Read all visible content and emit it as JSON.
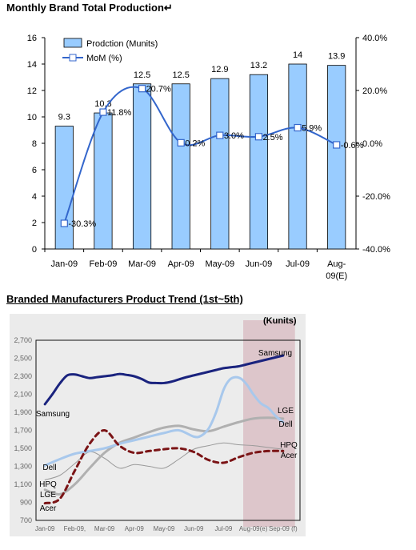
{
  "chart_data": [
    {
      "type": "bar",
      "title": "Monthly Brand Total Production↵",
      "categories": [
        "Jan-09",
        "Feb-09",
        "Mar-09",
        "Apr-09",
        "May-09",
        "Jun-09",
        "Jul-09",
        "Aug-09(E)"
      ],
      "category_lines": [
        [
          "Jan-09"
        ],
        [
          "Feb-09"
        ],
        [
          "Mar-09"
        ],
        [
          "Apr-09"
        ],
        [
          "May-09"
        ],
        [
          "Jun-09"
        ],
        [
          "Jul-09"
        ],
        [
          "Aug-",
          "09(E)"
        ]
      ],
      "series": [
        {
          "name": "Prodction (Munits)",
          "type": "bar",
          "axis": "left",
          "values": [
            9.3,
            10.3,
            12.5,
            12.5,
            12.9,
            13.2,
            14,
            13.9
          ],
          "labels": [
            "9.3",
            "10.3",
            "12.5",
            "12.5",
            "12.9",
            "13.2",
            "14",
            "13.9"
          ],
          "color": "#99ccff"
        },
        {
          "name": "MoM (%)",
          "type": "line",
          "axis": "right",
          "values": [
            -30.3,
            11.8,
            20.7,
            0.2,
            3.0,
            2.5,
            5.9,
            -0.6
          ],
          "labels": [
            "-30.3%",
            "11.8%",
            "20.7%",
            "0.2%",
            "3.0%",
            "2.5%",
            "5.9%",
            "-0.6%"
          ],
          "color": "#3366cc"
        }
      ],
      "y_left": {
        "min": 0,
        "max": 16,
        "ticks": [
          "0",
          "2",
          "4",
          "6",
          "8",
          "10",
          "12",
          "14",
          "16"
        ]
      },
      "y_right": {
        "min": -40,
        "max": 40,
        "ticks": [
          "-40.0%",
          "-20.0%",
          "0.0%",
          "20.0%",
          "40.0%"
        ]
      },
      "legend": "top-left",
      "grid": false
    },
    {
      "type": "line",
      "title": "Branded Manufacturers Product Trend (1st~5th)",
      "unit_label": "(Kunits)",
      "categories": [
        "Jan-09",
        "Feb-09,",
        "Mar-09",
        "Apr-09",
        "May-09",
        "Jun-09",
        "Jul-09",
        "Aug-09(e)",
        "Sep-09 (f)"
      ],
      "ylim": [
        700,
        2700
      ],
      "y_ticks": [
        "700",
        "900",
        "1,100",
        "1,300",
        "1,500",
        "1,700",
        "1,900",
        "2,100",
        "2,300",
        "2,500",
        "2,700"
      ],
      "highlight": {
        "from": "Aug-09(e)",
        "to": "Sep-09 (f)",
        "color": "#dcc2c8"
      },
      "series": [
        {
          "name": "Samsung",
          "color": "#1a237e",
          "width": 3,
          "dash": "",
          "x": [
            0,
            0.25,
            0.5,
            0.75,
            1,
            1.25,
            1.5,
            1.75,
            2,
            2.25,
            2.5,
            2.75,
            3,
            3.25,
            3.5,
            3.75,
            4,
            4.25,
            4.5,
            4.75,
            5,
            5.25,
            5.5,
            5.75,
            6,
            6.25,
            6.5,
            6.75,
            7,
            7.25,
            7.5,
            7.75,
            8
          ],
          "values": [
            1990,
            2100,
            2220,
            2310,
            2320,
            2300,
            2280,
            2290,
            2300,
            2310,
            2325,
            2315,
            2300,
            2270,
            2230,
            2225,
            2225,
            2240,
            2265,
            2290,
            2310,
            2330,
            2350,
            2370,
            2390,
            2400,
            2410,
            2430,
            2450,
            2470,
            2490,
            2510,
            2530
          ]
        },
        {
          "name": "LGE",
          "color": "#a8c8ec",
          "width": 3,
          "dash": "",
          "x": [
            0,
            0.5,
            1,
            1.5,
            2,
            2.5,
            3,
            3.5,
            4,
            4.5,
            5,
            5.25,
            5.5,
            5.75,
            6,
            6.2,
            6.4,
            6.6,
            6.8,
            7,
            7.25,
            7.5,
            7.75,
            8
          ],
          "values": [
            1310,
            1380,
            1440,
            1470,
            1500,
            1550,
            1590,
            1630,
            1670,
            1700,
            1630,
            1640,
            1720,
            1900,
            2150,
            2260,
            2290,
            2270,
            2200,
            2100,
            2000,
            1950,
            1860,
            1790
          ]
        },
        {
          "name": "Dell",
          "color": "#b0b0b0",
          "width": 3,
          "dash": "",
          "x": [
            0,
            0.5,
            1,
            1.5,
            2,
            2.5,
            3,
            3.5,
            4,
            4.5,
            5,
            5.5,
            6,
            6.5,
            7,
            7.5,
            8
          ],
          "values": [
            1040,
            990,
            1100,
            1280,
            1450,
            1560,
            1620,
            1680,
            1730,
            1750,
            1710,
            1690,
            1740,
            1790,
            1830,
            1840,
            1830
          ]
        },
        {
          "name": "HPQ",
          "color": "#9a9a9a",
          "width": 1,
          "dash": "",
          "x": [
            0,
            0.5,
            1,
            1.5,
            2,
            2.5,
            3,
            3.5,
            4,
            4.5,
            5,
            5.5,
            6,
            6.5,
            7,
            7.5,
            8
          ],
          "values": [
            1150,
            1200,
            1330,
            1460,
            1390,
            1280,
            1320,
            1300,
            1280,
            1380,
            1490,
            1530,
            1560,
            1540,
            1530,
            1510,
            1490
          ]
        },
        {
          "name": "Acer",
          "color": "#7b1416",
          "width": 3,
          "dash": "6,5",
          "x": [
            0,
            0.5,
            1,
            1.5,
            2,
            2.5,
            3,
            3.5,
            4,
            4.5,
            5,
            5.5,
            6,
            6.5,
            7,
            7.5,
            8
          ],
          "values": [
            890,
            940,
            1250,
            1550,
            1700,
            1530,
            1450,
            1470,
            1490,
            1500,
            1460,
            1370,
            1340,
            1400,
            1450,
            1470,
            1470
          ]
        }
      ],
      "labels": [
        {
          "text": "Samsung",
          "series": "Samsung"
        },
        {
          "text": "Samsung",
          "series": "Samsung"
        },
        {
          "text": "LGE",
          "series": "LGE"
        },
        {
          "text": "Dell",
          "series": "Dell"
        },
        {
          "text": "HPQ",
          "series": "HPQ"
        },
        {
          "text": "Acer",
          "series": "Acer"
        },
        {
          "text": "Dell",
          "series": "Dell"
        },
        {
          "text": "HPQ",
          "series": "HPQ"
        },
        {
          "text": "LGE",
          "series": "LGE"
        },
        {
          "text": "Acer",
          "series": "Acer"
        }
      ],
      "legend": "none",
      "grid": false
    }
  ]
}
